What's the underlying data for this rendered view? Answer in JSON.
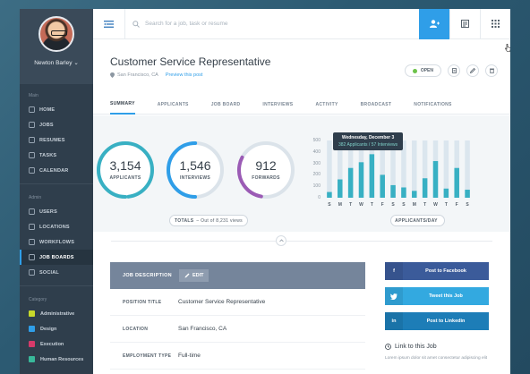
{
  "profile": {
    "name": "Newton Barley"
  },
  "sidebar": {
    "main_heading": "Main",
    "main_items": [
      {
        "label": "HOME",
        "icon": "home-icon"
      },
      {
        "label": "JOBS",
        "icon": "briefcase-icon"
      },
      {
        "label": "RESUMES",
        "icon": "document-icon"
      },
      {
        "label": "TASKS",
        "icon": "checklist-icon"
      },
      {
        "label": "CALENDAR",
        "icon": "calendar-icon"
      }
    ],
    "admin_heading": "Admin",
    "admin_items": [
      {
        "label": "USERS",
        "icon": "users-icon"
      },
      {
        "label": "LOCATIONS",
        "icon": "map-pin-icon"
      },
      {
        "label": "WORKFLOWS",
        "icon": "workflow-icon"
      },
      {
        "label": "JOB BOARDS",
        "icon": "board-icon",
        "active": true
      },
      {
        "label": "SOCIAL",
        "icon": "share-icon"
      }
    ],
    "category_heading": "Category",
    "categories": [
      {
        "label": "Administrative",
        "color": "#c7d82a"
      },
      {
        "label": "Design",
        "color": "#2f9ee8"
      },
      {
        "label": "Execution",
        "color": "#d63a6a"
      },
      {
        "label": "Human Resources",
        "color": "#38b89a"
      }
    ]
  },
  "topbar": {
    "search_placeholder": "Search for a job, task or resume"
  },
  "job": {
    "title": "Customer Service Representative",
    "location": "San Francisco, CA",
    "preview_link": "Preview this post",
    "status": "OPEN"
  },
  "tabs": [
    "SUMMARY",
    "APPLICANTS",
    "JOB BOARD",
    "INTERVIEWS",
    "ACTIVITY",
    "BROADCAST",
    "NOTIFICATIONS"
  ],
  "stats": {
    "rings": [
      {
        "value": "3,154",
        "label": "APPLICANTS",
        "color": "#38b0c3",
        "fraction": 0.98
      },
      {
        "value": "1,546",
        "label": "INTERVIEWS",
        "color": "#2f9ee8",
        "fraction": 0.5
      },
      {
        "value": "912",
        "label": "FORWARDS",
        "color": "#9b5bb5",
        "fraction": 0.3
      }
    ],
    "totals_label": "TOTALS",
    "totals_text": "Out of 8,231 views",
    "chart_pill": "APPLICANTS/DAY",
    "tooltip_date": "Wednesday, December 3",
    "tooltip_detail": "382 Applicants / 57 Interviews"
  },
  "chart_data": {
    "type": "bar",
    "categories": [
      "S",
      "M",
      "T",
      "W",
      "T",
      "F",
      "S",
      "S",
      "M",
      "T",
      "W",
      "T",
      "F",
      "S"
    ],
    "values": [
      50,
      160,
      260,
      310,
      380,
      200,
      110,
      90,
      60,
      170,
      320,
      80,
      260,
      70
    ],
    "background_values": [
      500,
      500,
      500,
      500,
      500,
      500,
      500,
      500,
      500,
      500,
      500,
      500,
      500,
      500
    ],
    "ylim": [
      0,
      500
    ],
    "yticks": [
      0,
      100,
      200,
      300,
      400,
      500
    ],
    "bar_color": "#38b0c3",
    "background_color": "#dbe6ee"
  },
  "job_description": {
    "heading": "JOB DESCRIPTION",
    "edit_label": "EDIT",
    "rows": [
      {
        "label": "POSITION TITLE",
        "value": "Customer Service Representative"
      },
      {
        "label": "LOCATION",
        "value": "San Francisco, CA"
      },
      {
        "label": "EMPLOYMENT TYPE",
        "value": "Full-time"
      }
    ]
  },
  "social": {
    "facebook": {
      "label": "Post to Facebook",
      "color": "#3b5b9a"
    },
    "twitter": {
      "label": "Tweet this Job",
      "color": "#33a9e0"
    },
    "linkedin": {
      "label": "Post to Linkedin",
      "color": "#1d7db7"
    },
    "link_title": "Link to this Job",
    "link_text": "Lorem ipsum dolor sit amet consectetur adipiscing elit"
  }
}
